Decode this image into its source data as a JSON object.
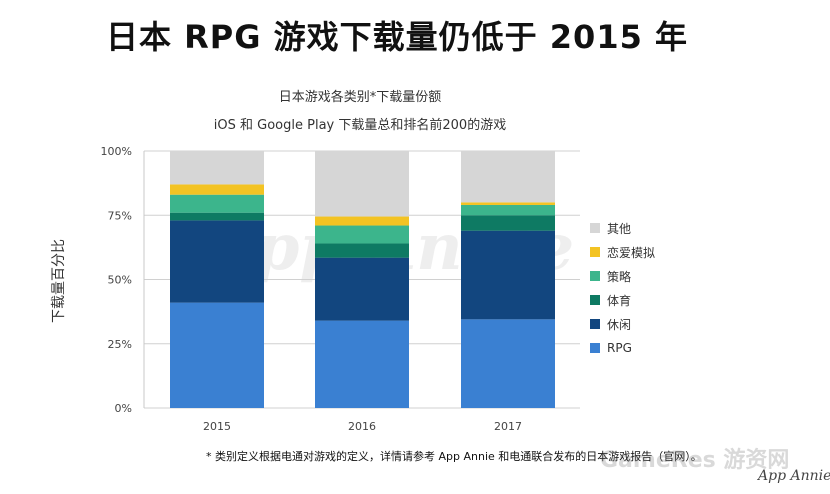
{
  "headline": "日本 RPG 游戏下载量仍低于 2015 年",
  "footnote": "* 类别定义根据电通对游戏的定义，详情请参考 App Annie 和电通联合发布的日本游戏报告（官网）。",
  "watermarks": {
    "center": "App Annie",
    "site": "GameRes 游资网",
    "brand": "App Annie"
  },
  "chart_data": {
    "type": "bar",
    "stacked": true,
    "title": "日本游戏各类别*下载量份额",
    "subtitle": "iOS 和 Google Play 下载量总和排名前200的游戏",
    "xlabel": "",
    "ylabel": "下载量百分比",
    "categories": [
      "2015",
      "2016",
      "2017"
    ],
    "ylim": [
      0,
      100
    ],
    "yticks": [
      "0%",
      "25%",
      "50%",
      "75%",
      "100%"
    ],
    "grid": true,
    "legend_position": "right",
    "series": [
      {
        "name": "RPG",
        "color": "#3a80d2",
        "values": [
          41,
          34,
          34.5
        ]
      },
      {
        "name": "休闲",
        "color": "#12467f",
        "values": [
          32,
          24.5,
          34.5
        ]
      },
      {
        "name": "体育",
        "color": "#0e7a63",
        "values": [
          3,
          5.5,
          6
        ]
      },
      {
        "name": "策略",
        "color": "#3cb58c",
        "values": [
          7,
          7,
          4
        ]
      },
      {
        "name": "恋爱模拟",
        "color": "#f3c323",
        "values": [
          4,
          3.5,
          1
        ]
      },
      {
        "name": "其他",
        "color": "#d6d6d6",
        "values": [
          13,
          25.5,
          20
        ]
      }
    ]
  }
}
